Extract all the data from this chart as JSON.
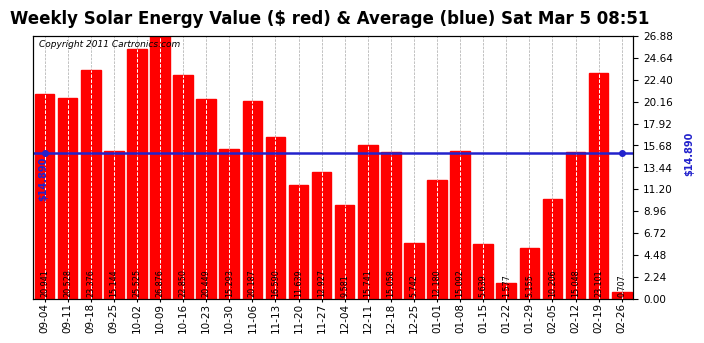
{
  "title": "Weekly Solar Energy Value ($ red) & Average (blue) Sat Mar 5 08:51",
  "copyright": "Copyright 2011 Cartronics.com",
  "categories": [
    "09-04",
    "09-11",
    "09-18",
    "09-25",
    "10-02",
    "10-09",
    "10-16",
    "10-23",
    "10-30",
    "11-06",
    "11-13",
    "11-20",
    "11-27",
    "12-04",
    "12-11",
    "12-18",
    "12-25",
    "01-01",
    "01-08",
    "01-15",
    "01-22",
    "01-29",
    "02-05",
    "02-12",
    "02-19",
    "02-26"
  ],
  "values": [
    20.941,
    20.528,
    23.376,
    15.144,
    25.525,
    26.876,
    22.85,
    20.449,
    15.293,
    20.187,
    16.59,
    11.639,
    12.927,
    9.581,
    15.741,
    15.058,
    5.742,
    12.18,
    15.092,
    5.639,
    1.577,
    5.155,
    10.206,
    15.048,
    23.101,
    0.707
  ],
  "average": 14.89,
  "bar_color": "#ff0000",
  "avg_line_color": "#2222cc",
  "background_color": "#ffffff",
  "plot_bg_color": "#ffffff",
  "grid_color": "#aaaaaa",
  "ylim": [
    0,
    26.88
  ],
  "yticks": [
    0.0,
    2.24,
    4.48,
    6.72,
    8.96,
    11.2,
    13.44,
    15.68,
    17.92,
    20.16,
    22.4,
    24.64,
    26.88
  ],
  "avg_label_left": "$14.890",
  "avg_label_right": "$14.890",
  "title_fontsize": 12,
  "copyright_fontsize": 6.5,
  "tick_fontsize": 7.5,
  "value_fontsize": 5.8
}
